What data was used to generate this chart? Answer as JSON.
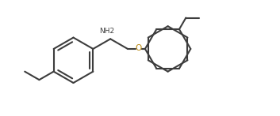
{
  "bg_color": "#ffffff",
  "line_color": "#3d3d3d",
  "o_color": "#b8860b",
  "nh2_text": "NH2",
  "o_text": "O",
  "line_width": 1.5,
  "fig_width": 3.53,
  "fig_height": 1.47,
  "dpi": 100,
  "xlim": [
    0,
    10
  ],
  "ylim": [
    0,
    4.16
  ]
}
